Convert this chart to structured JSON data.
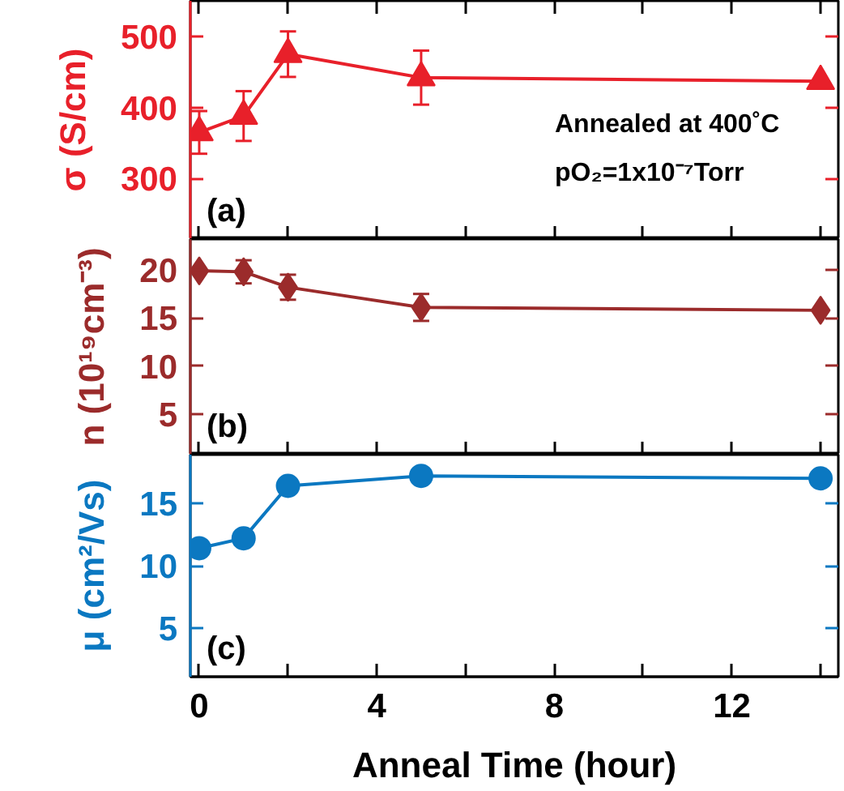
{
  "chart_data": [
    {
      "type": "line",
      "ylabel": "σ (S/cm)",
      "x": [
        0,
        1,
        2,
        5,
        14
      ],
      "marker": "triangle",
      "grid": false,
      "tick_labels": "y",
      "series": [
        {
          "color": "#e8202a",
          "values": [
            365,
            388,
            475,
            442,
            437
          ],
          "errors": [
            30,
            35,
            32,
            38,
            null
          ]
        }
      ],
      "xlim": [
        -0.2,
        14.4
      ],
      "xticks": [
        0,
        {
          "value": 2,
          "label": null
        },
        4,
        {
          "value": 6,
          "label": null
        },
        8,
        {
          "value": 10,
          "label": null
        },
        12,
        {
          "value": 14,
          "label": null
        }
      ],
      "ylim": [
        215,
        550
      ],
      "yticks": [
        300,
        400,
        500
      ],
      "annotations": [
        "(a)",
        "Annealed at 400˚C",
        "pO₂=1x10⁻⁷Torr"
      ]
    },
    {
      "type": "line",
      "ylabel": "n (10¹⁹cm⁻³)",
      "x": [
        0,
        1,
        2,
        5,
        14
      ],
      "marker": "diamond",
      "grid": false,
      "tick_labels": "y",
      "series": [
        {
          "color": "#9b2b2b",
          "values": [
            19.9,
            19.8,
            18.2,
            16.1,
            15.8
          ],
          "errors": [
            null,
            1.2,
            1.3,
            1.4,
            null
          ]
        }
      ],
      "xlim": [
        -0.2,
        14.4
      ],
      "xticks": [
        0,
        {
          "value": 2,
          "label": null
        },
        4,
        {
          "value": 6,
          "label": null
        },
        8,
        {
          "value": 10,
          "label": null
        },
        12,
        {
          "value": 14,
          "label": null
        }
      ],
      "ylim": [
        0.8,
        23.2
      ],
      "yticks": [
        5,
        10,
        15,
        20
      ],
      "annotations": [
        "(b)"
      ]
    },
    {
      "type": "line",
      "ylabel": "μ (cm²/Vs)",
      "xlabel": "Anneal Time (hour)",
      "x": [
        0,
        1,
        2,
        5,
        14
      ],
      "marker": "circle",
      "grid": false,
      "series": [
        {
          "color": "#0b78c1",
          "values": [
            11.4,
            12.2,
            16.4,
            17.2,
            17.0
          ],
          "errors": [
            null,
            null,
            null,
            null,
            0.4
          ]
        }
      ],
      "xlim": [
        -0.2,
        14.4
      ],
      "xticks": [
        0,
        {
          "value": 2,
          "label": null
        },
        4,
        {
          "value": 6,
          "label": null
        },
        8,
        {
          "value": 10,
          "label": null
        },
        12,
        {
          "value": 14,
          "label": null
        }
      ],
      "ylim": [
        1.1,
        18.9
      ],
      "yticks": [
        5,
        10,
        15
      ],
      "annotations": [
        "(c)"
      ]
    }
  ]
}
